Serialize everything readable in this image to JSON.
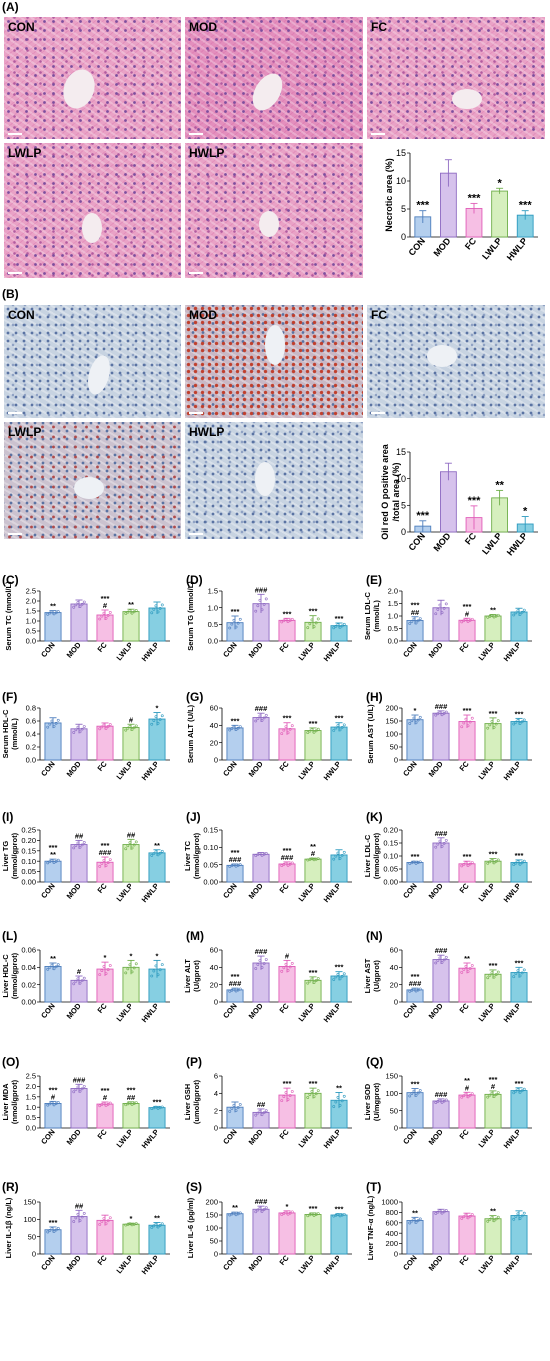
{
  "panel_labels": [
    "(A)",
    "(B)",
    "(C)",
    "(D)",
    "(E)",
    "(F)",
    "(G)",
    "(H)",
    "(I)",
    "(J)",
    "(K)",
    "(L)",
    "(M)",
    "(N)",
    "(O)",
    "(P)",
    "(Q)",
    "(R)",
    "(S)",
    "(T)"
  ],
  "groups": [
    "CON",
    "MOD",
    "FC",
    "LWLP",
    "HWLP"
  ],
  "image_labels": [
    "CON",
    "MOD",
    "FC",
    "LWLP",
    "HWLP"
  ],
  "colors": {
    "CON": "#b4cfee",
    "MOD": "#d6c2ec",
    "FC": "#f6bfe4",
    "LWLP": "#d6efbe",
    "HWLP": "#86cfe2",
    "CON_edge": "#4d7ebd",
    "MOD_edge": "#8e6ac2",
    "FC_edge": "#e05db8",
    "LWLP_edge": "#6fae4a",
    "HWLP_edge": "#2d9abf"
  },
  "chart_data": [
    {
      "id": "A",
      "type": "bar",
      "ylabel": "Necrotic area (%)",
      "yticks": [
        0,
        5,
        10,
        15
      ],
      "ylim": [
        0,
        15
      ],
      "categories": [
        "CON",
        "MOD",
        "FC",
        "LWLP",
        "HWLP"
      ],
      "values": [
        3.6,
        11.4,
        5.1,
        8.2,
        3.9
      ],
      "errors": [
        1.1,
        2.4,
        0.9,
        0.5,
        0.8
      ],
      "top_labels": [
        [
          "***"
        ],
        [],
        [
          "***"
        ],
        [
          "*"
        ],
        [
          "***"
        ]
      ]
    },
    {
      "id": "B",
      "type": "bar",
      "ylabel": "Oil red O positive area /total area (%)",
      "yticks": [
        0,
        5,
        10,
        15
      ],
      "ylim": [
        0,
        15
      ],
      "categories": [
        "CON",
        "MOD",
        "FC",
        "LWLP",
        "HWLP"
      ],
      "values": [
        1.1,
        11.3,
        2.7,
        6.4,
        1.5
      ],
      "errors": [
        1.0,
        1.6,
        2.2,
        1.4,
        1.4
      ],
      "top_labels": [
        [
          "***"
        ],
        [],
        [
          "***"
        ],
        [
          "**"
        ],
        [
          "*"
        ]
      ]
    },
    {
      "id": "C",
      "type": "bar",
      "ylabel": "Serum TC (mmol/L)",
      "yticks": [
        0,
        0.5,
        1.0,
        1.5,
        2.0,
        2.5
      ],
      "ylim": [
        0,
        2.5
      ],
      "categories": [
        "CON",
        "MOD",
        "FC",
        "LWLP",
        "HWLP"
      ],
      "values": [
        1.42,
        1.85,
        1.3,
        1.47,
        1.65
      ],
      "errors": [
        0.1,
        0.2,
        0.25,
        0.12,
        0.3
      ],
      "top_labels": [
        [
          "**"
        ],
        [],
        [
          "***",
          "#"
        ],
        [
          "**"
        ],
        []
      ]
    },
    {
      "id": "D",
      "type": "bar",
      "ylabel": "Serum TG (mmol/L)",
      "yticks": [
        0,
        0.5,
        1.0,
        1.5
      ],
      "ylim": [
        0,
        1.5
      ],
      "categories": [
        "CON",
        "MOD",
        "FC",
        "LWLP",
        "HWLP"
      ],
      "values": [
        0.55,
        1.12,
        0.62,
        0.56,
        0.46
      ],
      "errors": [
        0.2,
        0.28,
        0.06,
        0.2,
        0.08
      ],
      "top_labels": [
        [
          "***"
        ],
        [
          "###"
        ],
        [
          "***"
        ],
        [
          "***"
        ],
        [
          "***"
        ]
      ]
    },
    {
      "id": "E",
      "type": "bar",
      "ylabel": "Serum LDL-C (mmol/L)",
      "yticks": [
        0,
        0.5,
        1.0,
        1.5,
        2.0
      ],
      "ylim": [
        0,
        2.0
      ],
      "categories": [
        "CON",
        "MOD",
        "FC",
        "LWLP",
        "HWLP"
      ],
      "values": [
        0.82,
        1.33,
        0.83,
        1.0,
        1.16
      ],
      "errors": [
        0.15,
        0.3,
        0.08,
        0.06,
        0.15
      ],
      "top_labels": [
        [
          "***",
          "##"
        ],
        [],
        [
          "***",
          "#"
        ],
        [
          "**"
        ],
        []
      ]
    },
    {
      "id": "F",
      "type": "bar",
      "ylabel": "Serum HDL-C (mmol/L)",
      "yticks": [
        0,
        0.2,
        0.4,
        0.6,
        0.8
      ],
      "ylim": [
        0,
        0.8
      ],
      "categories": [
        "CON",
        "MOD",
        "FC",
        "LWLP",
        "HWLP"
      ],
      "values": [
        0.57,
        0.48,
        0.52,
        0.5,
        0.63
      ],
      "errors": [
        0.08,
        0.07,
        0.05,
        0.05,
        0.1
      ],
      "top_labels": [
        [],
        [],
        [],
        [
          "#"
        ],
        [
          "*"
        ]
      ]
    },
    {
      "id": "G",
      "type": "bar",
      "ylabel": "Serum ALT (U/L)",
      "yticks": [
        0,
        20,
        40,
        60
      ],
      "ylim": [
        0,
        60
      ],
      "categories": [
        "CON",
        "MOD",
        "FC",
        "LWLP",
        "HWLP"
      ],
      "values": [
        37,
        49,
        36,
        34,
        38
      ],
      "errors": [
        3,
        5,
        7,
        3,
        5
      ],
      "top_labels": [
        [
          "***"
        ],
        [
          "###"
        ],
        [
          "***"
        ],
        [
          "***"
        ],
        [
          "***"
        ]
      ]
    },
    {
      "id": "H",
      "type": "bar",
      "ylabel": "Serum AST (U/L)",
      "yticks": [
        0,
        50,
        100,
        150,
        200
      ],
      "ylim": [
        0,
        200
      ],
      "categories": [
        "CON",
        "MOD",
        "FC",
        "LWLP",
        "HWLP"
      ],
      "values": [
        155,
        180,
        148,
        140,
        148
      ],
      "errors": [
        18,
        9,
        25,
        22,
        12
      ],
      "top_labels": [
        [
          "*"
        ],
        [
          "###"
        ],
        [
          "***"
        ],
        [
          "***"
        ],
        [
          "***"
        ]
      ]
    },
    {
      "id": "I",
      "type": "bar",
      "ylabel": "Liver TG (mmol/gprot)",
      "yticks": [
        0,
        0.05,
        0.1,
        0.15,
        0.2,
        0.25
      ],
      "ylim": [
        0,
        0.25
      ],
      "categories": [
        "CON",
        "MOD",
        "FC",
        "LWLP",
        "HWLP"
      ],
      "values": [
        0.1,
        0.18,
        0.095,
        0.18,
        0.14
      ],
      "errors": [
        0.01,
        0.02,
        0.025,
        0.025,
        0.015
      ],
      "top_labels": [
        [
          "***",
          "**"
        ],
        [
          "##"
        ],
        [
          "***",
          "###"
        ],
        [
          "##"
        ],
        [
          "**"
        ]
      ]
    },
    {
      "id": "J",
      "type": "bar",
      "ylabel": "Liver TC (mmol/gprot)",
      "yticks": [
        0,
        0.05,
        0.1,
        0.15
      ],
      "ylim": [
        0,
        0.15
      ],
      "categories": [
        "CON",
        "MOD",
        "FC",
        "LWLP",
        "HWLP"
      ],
      "values": [
        0.048,
        0.08,
        0.052,
        0.066,
        0.078
      ],
      "errors": [
        0.004,
        0.005,
        0.006,
        0.003,
        0.015
      ],
      "top_labels": [
        [
          "***",
          "###"
        ],
        [],
        [
          "***",
          "###"
        ],
        [
          "**",
          "#"
        ],
        []
      ]
    },
    {
      "id": "K",
      "type": "bar",
      "ylabel": "Liver LDL-C (mmol/gprot)",
      "yticks": [
        0,
        0.05,
        0.1,
        0.15,
        0.2
      ],
      "ylim": [
        0,
        0.2
      ],
      "categories": [
        "CON",
        "MOD",
        "FC",
        "LWLP",
        "HWLP"
      ],
      "values": [
        0.075,
        0.15,
        0.07,
        0.08,
        0.075
      ],
      "errors": [
        0.005,
        0.02,
        0.01,
        0.01,
        0.01
      ],
      "top_labels": [
        [
          "***"
        ],
        [
          "###"
        ],
        [
          "***"
        ],
        [
          "***"
        ],
        [
          "***"
        ]
      ]
    },
    {
      "id": "L",
      "type": "bar",
      "ylabel": "Liver HDL-C (mmol/gprot)",
      "yticks": [
        0,
        0.02,
        0.04,
        0.06
      ],
      "ylim": [
        0,
        0.06
      ],
      "categories": [
        "CON",
        "MOD",
        "FC",
        "LWLP",
        "HWLP"
      ],
      "values": [
        0.041,
        0.025,
        0.038,
        0.04,
        0.038
      ],
      "errors": [
        0.004,
        0.005,
        0.008,
        0.008,
        0.01
      ],
      "top_labels": [
        [
          "**"
        ],
        [
          "#"
        ],
        [
          "*"
        ],
        [
          "*"
        ],
        [
          "*"
        ]
      ]
    },
    {
      "id": "M",
      "type": "bar",
      "ylabel": "Liver ALT (U/gprot)",
      "yticks": [
        0,
        20,
        40,
        60
      ],
      "ylim": [
        0,
        60
      ],
      "categories": [
        "CON",
        "MOD",
        "FC",
        "LWLP",
        "HWLP"
      ],
      "values": [
        14,
        45,
        41,
        25,
        30
      ],
      "errors": [
        2,
        8,
        7,
        4,
        5
      ],
      "top_labels": [
        [
          "***",
          "###"
        ],
        [
          "###"
        ],
        [
          "#"
        ],
        [
          "***"
        ],
        [
          "***"
        ]
      ]
    },
    {
      "id": "N",
      "type": "bar",
      "ylabel": "Liver AST (U/gprot)",
      "yticks": [
        0,
        20,
        40,
        60
      ],
      "ylim": [
        0,
        60
      ],
      "categories": [
        "CON",
        "MOD",
        "FC",
        "LWLP",
        "HWLP"
      ],
      "values": [
        14,
        49,
        39,
        32,
        34
      ],
      "errors": [
        2,
        5,
        6,
        5,
        6
      ],
      "top_labels": [
        [
          "***",
          "###"
        ],
        [
          "###"
        ],
        [
          "**"
        ],
        [
          "***"
        ],
        [
          "***"
        ]
      ]
    },
    {
      "id": "O",
      "type": "bar",
      "ylabel": "Liver MDA (nmol/gprot)",
      "yticks": [
        0,
        0.5,
        1.0,
        1.5,
        2.0,
        2.5
      ],
      "ylim": [
        0,
        2.5
      ],
      "categories": [
        "CON",
        "MOD",
        "FC",
        "LWLP",
        "HWLP"
      ],
      "values": [
        1.18,
        1.9,
        1.15,
        1.18,
        0.98
      ],
      "errors": [
        0.1,
        0.2,
        0.1,
        0.08,
        0.06
      ],
      "top_labels": [
        [
          "***",
          "#"
        ],
        [
          "###"
        ],
        [
          "***",
          "#"
        ],
        [
          "***",
          "##"
        ],
        [
          "***"
        ]
      ]
    },
    {
      "id": "P",
      "type": "bar",
      "ylabel": "Liver GSH (umol/gprot)",
      "yticks": [
        0,
        2,
        4,
        6
      ],
      "ylim": [
        0,
        6
      ],
      "categories": [
        "CON",
        "MOD",
        "FC",
        "LWLP",
        "HWLP"
      ],
      "values": [
        2.4,
        1.8,
        3.8,
        4.0,
        3.2
      ],
      "errors": [
        0.6,
        0.4,
        0.8,
        0.6,
        0.9
      ],
      "top_labels": [
        [],
        [
          "##"
        ],
        [
          "***"
        ],
        [
          "***"
        ],
        [
          "**"
        ]
      ]
    },
    {
      "id": "Q",
      "type": "bar",
      "ylabel": "Liver SOD (U/mgprot)",
      "yticks": [
        0,
        50,
        100,
        150
      ],
      "ylim": [
        0,
        150
      ],
      "categories": [
        "CON",
        "MOD",
        "FC",
        "LWLP",
        "HWLP"
      ],
      "values": [
        102,
        78,
        95,
        97,
        108
      ],
      "errors": [
        12,
        6,
        8,
        10,
        8
      ],
      "top_labels": [
        [
          "***"
        ],
        [
          "###"
        ],
        [
          "**",
          "#"
        ],
        [
          "***",
          "#"
        ],
        [
          "***"
        ]
      ]
    },
    {
      "id": "R",
      "type": "bar",
      "ylabel": "Liver IL-1β (ng/L)",
      "yticks": [
        0,
        50,
        100,
        150
      ],
      "ylim": [
        0,
        150
      ],
      "categories": [
        "CON",
        "MOD",
        "FC",
        "LWLP",
        "HWLP"
      ],
      "values": [
        70,
        108,
        97,
        86,
        83
      ],
      "errors": [
        8,
        18,
        15,
        3,
        8
      ],
      "top_labels": [
        [
          "***"
        ],
        [
          "##"
        ],
        [],
        [
          "*"
        ],
        [
          "**"
        ]
      ]
    },
    {
      "id": "S",
      "type": "bar",
      "ylabel": "Liver IL-6 (pg/ml)",
      "yticks": [
        0,
        50,
        100,
        150,
        200
      ],
      "ylim": [
        0,
        200
      ],
      "categories": [
        "CON",
        "MOD",
        "FC",
        "LWLP",
        "HWLP"
      ],
      "values": [
        155,
        172,
        158,
        152,
        150
      ],
      "errors": [
        6,
        12,
        8,
        6,
        5
      ],
      "top_labels": [
        [
          "**"
        ],
        [
          "###"
        ],
        [
          "*"
        ],
        [
          "***"
        ],
        [
          "***"
        ]
      ]
    },
    {
      "id": "T",
      "type": "bar",
      "ylabel": "Liver TNF-α (ng/L)",
      "yticks": [
        0,
        200,
        400,
        600,
        800,
        1000
      ],
      "ylim": [
        0,
        1000
      ],
      "categories": [
        "CON",
        "MOD",
        "FC",
        "LWLP",
        "HWLP"
      ],
      "values": [
        645,
        815,
        730,
        678,
        740
      ],
      "errors": [
        60,
        45,
        55,
        60,
        90
      ],
      "top_labels": [
        [
          "**"
        ],
        [],
        [],
        [
          "**"
        ],
        []
      ]
    }
  ]
}
